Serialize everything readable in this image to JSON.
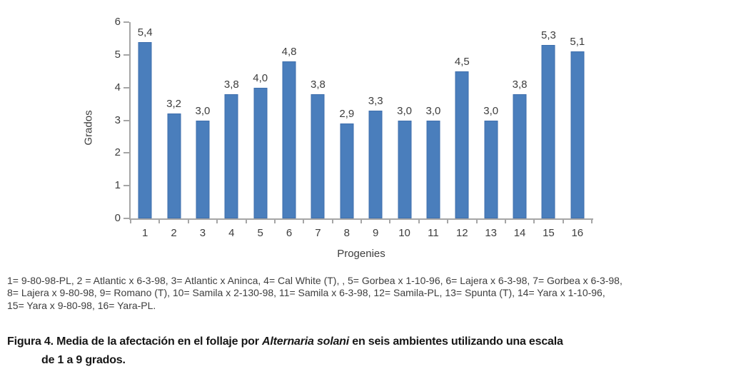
{
  "chart_data": {
    "type": "bar",
    "title": "",
    "categories": [
      "1",
      "2",
      "3",
      "4",
      "5",
      "6",
      "7",
      "8",
      "9",
      "10",
      "11",
      "12",
      "13",
      "14",
      "15",
      "16"
    ],
    "values": [
      5.4,
      3.2,
      3.0,
      3.8,
      4.0,
      4.8,
      3.8,
      2.9,
      3.3,
      3.0,
      3.0,
      4.5,
      3.0,
      3.8,
      5.3,
      5.1
    ],
    "value_labels": [
      "5,4",
      "3,2",
      "3,0",
      "3,8",
      "4,0",
      "4,8",
      "3,8",
      "2,9",
      "3,3",
      "3,0",
      "3,0",
      "4,5",
      "3,0",
      "3,8",
      "5,3",
      "5,1"
    ],
    "xlabel": "Progenies",
    "ylabel": "Grados",
    "ylim": [
      0,
      6
    ],
    "yticks": [
      0,
      1,
      2,
      3,
      4,
      5,
      6
    ],
    "grid": false,
    "legend_position": "none",
    "bar_color": "#4a7ebc",
    "bar_border_color": "#3f6fad",
    "axis_color": "#a6a6a6",
    "text_color": "#3d3d3d"
  },
  "note": {
    "line1": "1= 9-80-98-PL, 2 = Atlantic x 6-3-98, 3= Atlantic x Aninca, 4= Cal White (T), , 5= Gorbea x 1-10-96, 6= Lajera x 6-3-98, 7= Gorbea x 6-3-98,",
    "line2": "8= Lajera x 9-80-98, 9= Romano (T), 10= Samila x 2-130-98, 11= Samila x 6-3-98, 12= Samila-PL, 13= Spunta (T), 14= Yara x 1-10-96,",
    "line3": "15= Yara x 9-80-98, 16= Yara-PL."
  },
  "caption": {
    "line1_pre": "Figura 4. Media de la afectación en el follaje por ",
    "line1_italic": "Alternaria solani",
    "line1_post": " en seis ambientes utilizando una escala",
    "line2": "de 1 a 9 grados."
  }
}
